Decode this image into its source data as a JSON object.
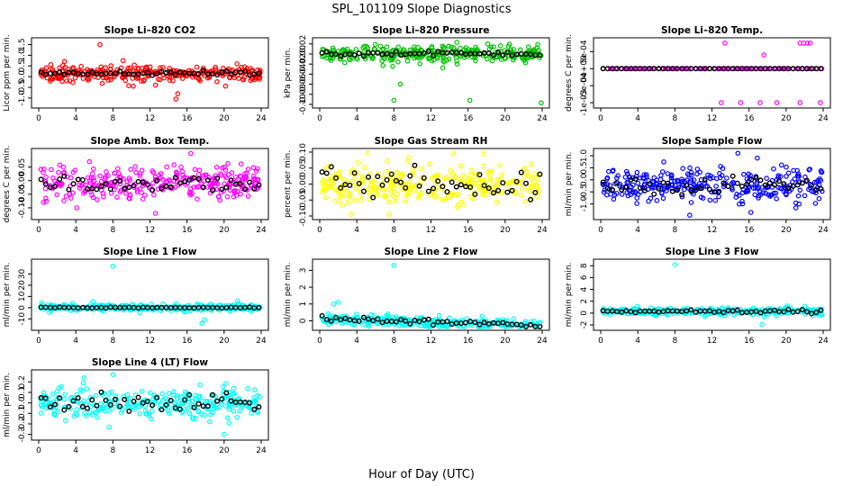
{
  "figure": {
    "title": "SPL_101109  Slope Diagnostics",
    "xlabel": "Hour of Day (UTC)"
  },
  "chart_data": [
    {
      "type": "scatter",
      "title": "Slope Li–820 CO2",
      "ylabel": "Licor ppm per min.",
      "color": "#ff0000",
      "xlim": [
        0,
        24
      ],
      "ylim": [
        -1.3,
        1.65
      ],
      "xticks": [
        0,
        4,
        8,
        12,
        16,
        20,
        24
      ],
      "yticks": [
        1.5,
        1.0,
        0.5,
        0.0,
        -0.5,
        -1.0
      ],
      "ytick_labels": [
        "1.5",
        "1.0",
        "0.5",
        "0.0",
        "-0.5",
        "-1.0"
      ],
      "center": 0.15,
      "spread": 0.17,
      "mean_spread": 0.05,
      "outliers": [
        [
          6.6,
          1.5
        ],
        [
          14.8,
          -1.05
        ],
        [
          15.0,
          -0.8
        ],
        [
          10.2,
          -0.45
        ],
        [
          12.6,
          -0.4
        ],
        [
          9.1,
          0.75
        ],
        [
          21.4,
          0.6
        ]
      ]
    },
    {
      "type": "scatter",
      "title": "Slope Li–820 Pressure",
      "ylabel": "kPa per min.",
      "color": "#00c000",
      "xlim": [
        0,
        24
      ],
      "ylim": [
        -0.1,
        0.025
      ],
      "xticks": [
        0,
        4,
        8,
        12,
        16,
        20,
        24
      ],
      "yticks": [
        0.02,
        0.0,
        -0.02,
        -0.04,
        -0.06,
        -0.08,
        -0.1
      ],
      "ytick_labels": [
        "0.02",
        "0.00",
        "-0.02",
        "-0.04",
        "-0.06",
        "-0.08",
        "-0.10"
      ],
      "center": 0.0,
      "spread": 0.009,
      "mean_spread": 0.003,
      "outliers": [
        [
          8.0,
          -0.092
        ],
        [
          16.2,
          -0.092
        ],
        [
          23.9,
          -0.097
        ],
        [
          8.7,
          -0.06
        ]
      ]
    },
    {
      "type": "scatter",
      "title": "Slope Li–820 Temp.",
      "ylabel": "degrees C per min.",
      "color": "#ff00ff",
      "xlim": [
        0,
        24
      ],
      "ylim": [
        -0.00105,
        0.0008
      ],
      "xticks": [
        0,
        4,
        8,
        12,
        16,
        20,
        24
      ],
      "yticks": [
        0.0005,
        0.0,
        -0.0005,
        -0.001
      ],
      "ytick_labels": [
        "5e-04",
        "0e+00",
        "-5e-04",
        "-1e-03"
      ],
      "center": 0.0,
      "spread": 0.0,
      "mean_spread": 0.0,
      "flat": true,
      "outliers": [
        [
          13.4,
          0.00075
        ],
        [
          21.5,
          0.00075
        ],
        [
          21.9,
          0.00075
        ],
        [
          22.3,
          0.00075
        ],
        [
          22.6,
          0.00075
        ],
        [
          17.6,
          0.0004
        ],
        [
          13.0,
          -0.001
        ],
        [
          15.1,
          -0.001
        ],
        [
          17.2,
          -0.001
        ],
        [
          19.0,
          -0.001
        ],
        [
          21.5,
          -0.001
        ],
        [
          23.7,
          -0.001
        ]
      ]
    },
    {
      "type": "scatter",
      "title": "Slope Amb. Box Temp.",
      "ylabel": "degrees C per min.",
      "color": "#ff00ff",
      "xlim": [
        0,
        24
      ],
      "ylim": [
        -0.13,
        0.105
      ],
      "xticks": [
        0,
        4,
        8,
        12,
        16,
        20,
        24
      ],
      "yticks": [
        0.05,
        0.0,
        -0.05,
        -0.1
      ],
      "ytick_labels": [
        "0.05",
        "0.00",
        "-0.05",
        "-0.10"
      ],
      "center": -0.01,
      "spread": 0.03,
      "mean_spread": 0.02,
      "outliers": [
        [
          16.4,
          0.1
        ],
        [
          12.6,
          -0.12
        ],
        [
          4.1,
          -0.1
        ]
      ]
    },
    {
      "type": "scatter",
      "title": "Slope Gas Stream RH",
      "ylabel": "percent per min.",
      "color": "#ffff00",
      "xlim": [
        0,
        24
      ],
      "ylim": [
        -0.1,
        0.1
      ],
      "xticks": [
        0,
        4,
        8,
        12,
        16,
        20,
        24
      ],
      "yticks": [
        0.1,
        0.05,
        0.0,
        -0.05,
        -0.1
      ],
      "ytick_labels": [
        "0.10",
        "0.05",
        "0.00",
        "-0.05",
        "-0.10"
      ],
      "center": 0.0,
      "spread": 0.03,
      "mean_spread": 0.025,
      "outliers": [
        [
          3.4,
          -0.095
        ],
        [
          7.5,
          -0.095
        ],
        [
          14.4,
          0.095
        ],
        [
          17.7,
          0.095
        ]
      ]
    },
    {
      "type": "scatter",
      "title": "Slope Sample Flow",
      "ylabel": "ml/min per min.",
      "color": "#0000ff",
      "xlim": [
        0,
        24
      ],
      "ylim": [
        -1.5,
        1.15
      ],
      "xticks": [
        0,
        4,
        8,
        12,
        16,
        20,
        24
      ],
      "yticks": [
        1.0,
        0.5,
        0.0,
        -0.5,
        -1.0
      ],
      "ytick_labels": [
        "1.0",
        "0.5",
        "0.0",
        "-0.5",
        "-1.0"
      ],
      "center": -0.2,
      "spread": 0.35,
      "mean_spread": 0.2,
      "outliers": [
        [
          14.8,
          1.1
        ],
        [
          16.2,
          -1.35
        ],
        [
          16.9,
          0.9
        ],
        [
          21.4,
          -1.0
        ]
      ]
    },
    {
      "type": "scatter",
      "title": "Slope Line 1 Flow",
      "ylabel": "ml/min per min.",
      "color": "#00ffff",
      "xlim": [
        0,
        24
      ],
      "ylim": [
        -17,
        40
      ],
      "xticks": [
        0,
        4,
        8,
        12,
        16,
        20,
        24
      ],
      "yticks": [
        30,
        20,
        10,
        0,
        -10
      ],
      "ytick_labels": [
        "30",
        "20",
        "10",
        "0",
        "-10"
      ],
      "center": 0.0,
      "spread": 1.5,
      "mean_spread": 0.2,
      "outliers": [
        [
          8.0,
          37
        ],
        [
          17.6,
          -14
        ],
        [
          17.9,
          -11
        ]
      ]
    },
    {
      "type": "scatter",
      "title": "Slope Line 2 Flow",
      "ylabel": "ml/min per min.",
      "color": "#00ffff",
      "xlim": [
        0,
        24
      ],
      "ylim": [
        -0.35,
        3.45
      ],
      "xticks": [
        0,
        4,
        8,
        12,
        16,
        20,
        24
      ],
      "yticks": [
        3,
        2,
        1,
        0
      ],
      "ytick_labels": [
        "3",
        "2",
        "1",
        "0"
      ],
      "center": 0.1,
      "spread": 0.15,
      "mean_spread": 0.08,
      "trend": -0.015,
      "outliers": [
        [
          8.0,
          3.3
        ],
        [
          1.5,
          1.0
        ],
        [
          2.0,
          1.1
        ]
      ]
    },
    {
      "type": "scatter",
      "title": "Slope Line 3 Flow",
      "ylabel": "ml/min per min.",
      "color": "#00ffff",
      "xlim": [
        0,
        24
      ],
      "ylim": [
        -2.3,
        8.5
      ],
      "xticks": [
        0,
        4,
        8,
        12,
        16,
        20,
        24
      ],
      "yticks": [
        8,
        6,
        4,
        2,
        0,
        -2
      ],
      "ytick_labels": [
        "8",
        "6",
        "4",
        "2",
        "0",
        "-2"
      ],
      "center": 0.3,
      "spread": 0.3,
      "mean_spread": 0.15,
      "outliers": [
        [
          8.0,
          8.2
        ],
        [
          17.4,
          -1.9
        ]
      ]
    },
    {
      "type": "scatter",
      "title": "Slope Line 4 (LT) Flow",
      "ylabel": "ml/min per min.",
      "color": "#00ffff",
      "xlim": [
        0,
        24
      ],
      "ylim": [
        -0.32,
        0.28
      ],
      "xticks": [
        0,
        4,
        8,
        12,
        16,
        20,
        24
      ],
      "yticks": [
        0.2,
        0.1,
        0.0,
        -0.1,
        -0.2,
        -0.3
      ],
      "ytick_labels": [
        "0.2",
        "0.1",
        "0.0",
        "-0.1",
        "-0.2",
        "-0.3"
      ],
      "center": 0.0,
      "spread": 0.07,
      "mean_spread": 0.05,
      "outliers": [
        [
          8.0,
          0.27
        ],
        [
          20.0,
          -0.3
        ],
        [
          7.6,
          -0.23
        ]
      ]
    }
  ]
}
